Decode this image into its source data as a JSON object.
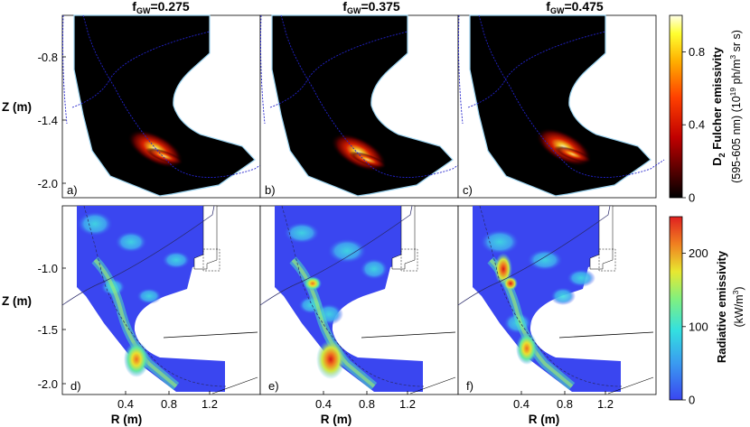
{
  "titles": [
    "f GW=0.275",
    "f GW=0.375",
    "f GW=0.475"
  ],
  "title_parts": [
    {
      "f": "f",
      "sub": "GW",
      "val": "=0.275"
    },
    {
      "f": "f",
      "sub": "GW",
      "val": "=0.375"
    },
    {
      "f": "f",
      "sub": "GW",
      "val": "=0.475"
    }
  ],
  "panel_labels": [
    "a)",
    "b)",
    "c)",
    "d)",
    "e)",
    "f)"
  ],
  "top_row": {
    "ylabel": "Z (m)",
    "yticks": [
      "-0.8",
      "-1.4",
      "-2.0"
    ],
    "colorbar": {
      "label_line1_main": "D",
      "label_line1_sub": "2",
      "label_line1_rest": " Fulcher emissivity",
      "label_line2": "(595-605 nm) (10",
      "label_line2_sup": "19",
      "label_line2_mid": " ph/m",
      "label_line2_sup2": "3",
      "label_line2_end": " sr s)",
      "ticks": [
        "0",
        "0.4",
        "0.8"
      ],
      "range": [
        0,
        1.0
      ],
      "colormap": "hot"
    }
  },
  "bottom_row": {
    "ylabel": "Z (m)",
    "yticks": [
      "-1.0",
      "-1.5",
      "-2.0"
    ],
    "xlabel": "R (m)",
    "xticks": [
      "0.4",
      "0.8",
      "1.2"
    ],
    "colorbar": {
      "label_line1": "Radiative emissivity",
      "label_line2": "(kW/m",
      "label_line2_sup": "3",
      "label_line2_end": ")",
      "ticks": [
        "0",
        "100",
        "200"
      ],
      "range": [
        0,
        250
      ],
      "colormap": "jet"
    }
  },
  "colors": {
    "separatrix": "#2222cc",
    "wall": "#9bd3f0",
    "background": "#000000",
    "radiative_background": "#3a46f0"
  }
}
